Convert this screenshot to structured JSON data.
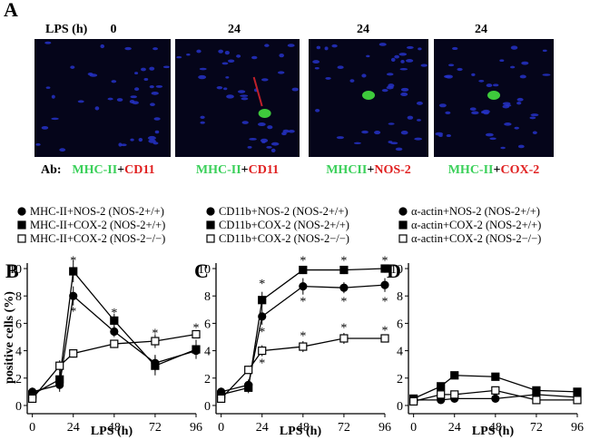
{
  "panel_a": {
    "label": "A",
    "lps_label": "LPS (h)",
    "times": [
      "0",
      "24",
      "24",
      "24"
    ],
    "ab_label": "Ab:",
    "stains": [
      [
        "MHC-II",
        "+",
        "CD11"
      ],
      [
        "MHC-II",
        "+",
        "CD11"
      ],
      [
        "MHCII",
        "+",
        "NOS-2"
      ],
      [
        "MHC-II",
        "+",
        "COX-2"
      ]
    ]
  },
  "y_label": "positive cells (%)",
  "chart_data": [
    {
      "type": "line",
      "panel": "B",
      "x_label": "LPS (h)",
      "x": [
        0,
        16,
        24,
        48,
        72,
        96
      ],
      "xlim": [
        -3,
        96
      ],
      "xticks": [
        0,
        24,
        48,
        72,
        96
      ],
      "ylim": [
        -0.6,
        10.4
      ],
      "yticks": [
        0,
        2,
        4,
        6,
        8,
        10
      ],
      "series": [
        {
          "name": "MHC-II+NOS-2 (NOS-2+/+)",
          "marker": "circle",
          "color": "#000000",
          "filled": true,
          "values": [
            1.0,
            1.5,
            8.0,
            5.4,
            3.1,
            4.0
          ],
          "errors": [
            0.3,
            0.5,
            0.7,
            0.4,
            0.6,
            0.5
          ]
        },
        {
          "name": "MHC-II+COX-2 (NOS-2+/+)",
          "marker": "square",
          "color": "#000000",
          "filled": true,
          "values": [
            0.8,
            1.9,
            9.8,
            6.2,
            2.9,
            4.1
          ],
          "errors": [
            0.3,
            0.6,
            0.8,
            0.5,
            0.7,
            0.7
          ]
        },
        {
          "name": "MHC-II+COX-2 (NOS-2−/−)",
          "marker": "square",
          "color": "#000000",
          "filled": false,
          "values": [
            0.5,
            2.9,
            3.8,
            4.5,
            4.7,
            5.2
          ],
          "errors": [
            0.2,
            0.4,
            0.3,
            0.3,
            0.5,
            0.3
          ]
        }
      ],
      "annotations": [
        {
          "x": 24,
          "y": 10.7,
          "text": "*"
        },
        {
          "x": 24,
          "y": 7.0,
          "text": "*"
        },
        {
          "x": 48,
          "y": 6.9,
          "text": "*"
        },
        {
          "x": 72,
          "y": 5.4,
          "text": "*"
        },
        {
          "x": 96,
          "y": 5.8,
          "text": "*"
        }
      ]
    },
    {
      "type": "line",
      "panel": "C",
      "x_label": "LPS (h)",
      "x": [
        0,
        16,
        24,
        48,
        72,
        96
      ],
      "xlim": [
        -3,
        96
      ],
      "xticks": [
        0,
        24,
        48,
        72,
        96
      ],
      "ylim": [
        -0.6,
        10.4
      ],
      "yticks": [
        0,
        2,
        4,
        6,
        8,
        10
      ],
      "series": [
        {
          "name": "CD11b+NOS-2 (NOS-2+/+)",
          "marker": "circle",
          "color": "#000000",
          "filled": true,
          "values": [
            1.0,
            1.5,
            6.5,
            8.7,
            8.6,
            8.8
          ],
          "errors": [
            0.3,
            0.4,
            0.6,
            0.6,
            0.4,
            0.5
          ]
        },
        {
          "name": "CD11b+COX-2 (NOS-2+/+)",
          "marker": "square",
          "color": "#000000",
          "filled": true,
          "values": [
            0.8,
            1.3,
            7.7,
            9.9,
            9.9,
            10.0
          ],
          "errors": [
            0.3,
            0.4,
            0.6,
            0.3,
            0.3,
            0.3
          ]
        },
        {
          "name": "CD11b+COX-2 (NOS-2−/−)",
          "marker": "square",
          "color": "#000000",
          "filled": false,
          "values": [
            0.5,
            2.6,
            4.0,
            4.3,
            4.9,
            4.9
          ],
          "errors": [
            0.2,
            0.3,
            0.4,
            0.4,
            0.4,
            0.2
          ]
        }
      ],
      "annotations": [
        {
          "x": 24,
          "y": 9.0,
          "text": "*"
        },
        {
          "x": 24,
          "y": 5.5,
          "text": "*"
        },
        {
          "x": 24,
          "y": 3.2,
          "text": "*"
        },
        {
          "x": 48,
          "y": 10.7,
          "text": "*"
        },
        {
          "x": 48,
          "y": 7.7,
          "text": "*"
        },
        {
          "x": 48,
          "y": 5.2,
          "text": "*"
        },
        {
          "x": 72,
          "y": 10.7,
          "text": "*"
        },
        {
          "x": 72,
          "y": 7.7,
          "text": "*"
        },
        {
          "x": 72,
          "y": 5.8,
          "text": "*"
        },
        {
          "x": 96,
          "y": 10.7,
          "text": "*"
        },
        {
          "x": 96,
          "y": 7.7,
          "text": "*"
        },
        {
          "x": 96,
          "y": 5.6,
          "text": "*"
        }
      ]
    },
    {
      "type": "line",
      "panel": "D",
      "x_label": "LPS (h)",
      "x": [
        0,
        16,
        24,
        48,
        72,
        96
      ],
      "xlim": [
        -3,
        96
      ],
      "xticks": [
        0,
        24,
        48,
        72,
        96
      ],
      "ylim": [
        -0.6,
        10.4
      ],
      "yticks": [
        0,
        2,
        4,
        6,
        8,
        10
      ],
      "series": [
        {
          "name": "α-actin+NOS-2 (NOS-2+/+)",
          "marker": "circle",
          "color": "#000000",
          "filled": true,
          "values": [
            0.4,
            0.4,
            0.5,
            0.5,
            0.8,
            0.6
          ],
          "errors": [
            0.1,
            0.1,
            0.1,
            0.1,
            0.1,
            0.1
          ]
        },
        {
          "name": "α-actin+COX-2 (NOS-2+/+)",
          "marker": "square",
          "color": "#000000",
          "filled": true,
          "values": [
            0.5,
            1.4,
            2.2,
            2.1,
            1.1,
            1.0
          ],
          "errors": [
            0.1,
            0.1,
            0.1,
            0.1,
            0.1,
            0.1
          ]
        },
        {
          "name": "α-actin+COX-2 (NOS-2−/−)",
          "marker": "square",
          "color": "#000000",
          "filled": false,
          "values": [
            0.3,
            0.8,
            0.8,
            1.1,
            0.4,
            0.4
          ],
          "errors": [
            0.1,
            0.1,
            0.1,
            0.1,
            0.1,
            0.1
          ]
        }
      ],
      "annotations": []
    }
  ]
}
